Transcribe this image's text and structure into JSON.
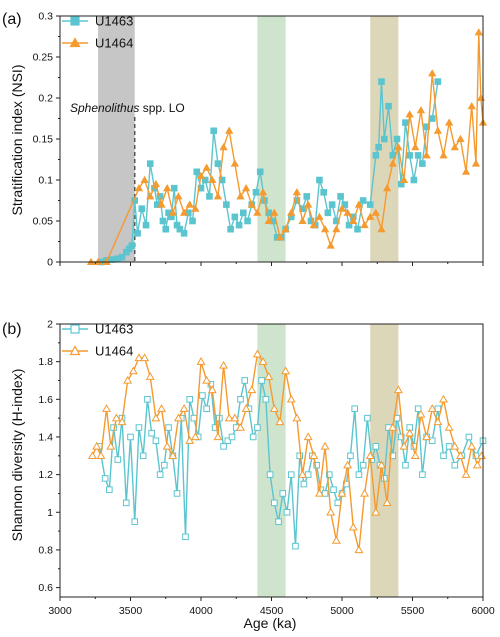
{
  "chart_data": [
    {
      "type": "line",
      "panel_label": "(a)",
      "ylabel": "Stratification index (NSI)",
      "xlabel": "",
      "xlim": [
        3000,
        6000
      ],
      "ylim": [
        0,
        0.3
      ],
      "yticks": [
        0,
        0.05,
        0.1,
        0.15,
        0.2,
        0.25,
        0.3
      ],
      "legend_position": "top-left",
      "annotation": {
        "italic": "Sphenolithus",
        "rest": " spp. LO"
      },
      "bands": [
        {
          "x0": 3270,
          "x1": 3530,
          "color": "#c6c6c6"
        },
        {
          "x0": 4400,
          "x1": 4600,
          "color": "#cfe4cc"
        },
        {
          "x0": 5200,
          "x1": 5400,
          "color": "#ddd7ba"
        }
      ],
      "dashed_line_x": 3530,
      "series": [
        {
          "name": "U1463",
          "color": "#5bc5cf",
          "marker": "square-filled",
          "x": [
            3290,
            3330,
            3370,
            3410,
            3440,
            3470,
            3490,
            3510,
            3530,
            3550,
            3580,
            3610,
            3640,
            3670,
            3690,
            3710,
            3730,
            3750,
            3770,
            3790,
            3810,
            3830,
            3850,
            3880,
            3910,
            3940,
            3970,
            4000,
            4030,
            4060,
            4090,
            4120,
            4150,
            4180,
            4210,
            4240,
            4270,
            4300,
            4330,
            4360,
            4390,
            4420,
            4450,
            4480,
            4510,
            4540,
            4570,
            4600,
            4640,
            4680,
            4720,
            4750,
            4780,
            4810,
            4840,
            4870,
            4900,
            4930,
            4960,
            4990,
            5020,
            5050,
            5080,
            5110,
            5150,
            5200,
            5240,
            5260,
            5280,
            5300,
            5330,
            5360,
            5390,
            5420,
            5450,
            5480,
            5510,
            5540,
            5570,
            5600,
            5640,
            5680
          ],
          "y": [
            0.0,
            0.002,
            0.003,
            0.004,
            0.006,
            0.012,
            0.016,
            0.02,
            0.075,
            0.035,
            0.065,
            0.045,
            0.12,
            0.09,
            0.07,
            0.08,
            0.05,
            0.04,
            0.06,
            0.055,
            0.09,
            0.045,
            0.04,
            0.035,
            0.06,
            0.05,
            0.11,
            0.09,
            0.1,
            0.08,
            0.16,
            0.12,
            0.1,
            0.07,
            0.04,
            0.055,
            0.045,
            0.06,
            0.05,
            0.07,
            0.085,
            0.11,
            0.075,
            0.06,
            0.05,
            0.03,
            0.03,
            0.04,
            0.055,
            0.075,
            0.065,
            0.08,
            0.05,
            0.045,
            0.1,
            0.085,
            0.06,
            0.07,
            0.05,
            0.08,
            0.07,
            0.045,
            0.055,
            0.04,
            0.075,
            0.07,
            0.13,
            0.14,
            0.22,
            0.15,
            0.19,
            0.13,
            0.15,
            0.095,
            0.17,
            0.13,
            0.1,
            0.13,
            0.12,
            0.165,
            0.175,
            0.22
          ]
        },
        {
          "name": "U1464",
          "color": "#f59a2e",
          "marker": "triangle-filled",
          "x": [
            3220,
            3270,
            3330,
            3560,
            3600,
            3640,
            3680,
            3720,
            3760,
            3800,
            3840,
            3880,
            3920,
            3960,
            4000,
            4040,
            4080,
            4120,
            4160,
            4200,
            4240,
            4280,
            4320,
            4360,
            4400,
            4440,
            4480,
            4520,
            4560,
            4600,
            4640,
            4680,
            4720,
            4760,
            4800,
            4840,
            4880,
            4920,
            4960,
            5000,
            5040,
            5080,
            5120,
            5160,
            5200,
            5240,
            5280,
            5320,
            5360,
            5400,
            5440,
            5480,
            5520,
            5560,
            5600,
            5640,
            5680,
            5720,
            5760,
            5800,
            5840,
            5880,
            5920,
            5950,
            5970,
            5985,
            6000
          ],
          "y": [
            0.0,
            0.0,
            0.0,
            0.09,
            0.1,
            0.08,
            0.095,
            0.07,
            0.09,
            0.06,
            0.08,
            0.06,
            0.07,
            0.065,
            0.105,
            0.115,
            0.1,
            0.08,
            0.14,
            0.16,
            0.12,
            0.08,
            0.09,
            0.07,
            0.06,
            0.085,
            0.05,
            0.06,
            0.03,
            0.04,
            0.06,
            0.085,
            0.05,
            0.07,
            0.045,
            0.055,
            0.04,
            0.02,
            0.04,
            0.065,
            0.06,
            0.05,
            0.07,
            0.045,
            0.055,
            0.06,
            0.04,
            0.09,
            0.12,
            0.14,
            0.1,
            0.18,
            0.14,
            0.185,
            0.13,
            0.23,
            0.16,
            0.13,
            0.17,
            0.14,
            0.15,
            0.11,
            0.19,
            0.12,
            0.28,
            0.2,
            0.17
          ]
        }
      ]
    },
    {
      "type": "line",
      "panel_label": "(b)",
      "ylabel": "Shannon diversity (H-index)",
      "xlabel": "Age (ka)",
      "xlim": [
        3000,
        6000
      ],
      "ylim": [
        0.55,
        2.0
      ],
      "yticks": [
        0.6,
        0.8,
        1,
        1.2,
        1.4,
        1.6,
        1.8,
        2
      ],
      "ytick_labels": [
        "0.6",
        "0.8",
        "1",
        "1.2",
        "1.4",
        "1.6",
        "1.8",
        "2"
      ],
      "xticks": [
        3000,
        3500,
        4000,
        4500,
        5000,
        5500,
        6000
      ],
      "xtick_labels": [
        "3000",
        "3500",
        "4000",
        "4500",
        "5000",
        "5500",
        "6000"
      ],
      "legend_position": "top-left",
      "bands": [
        {
          "x0": 4400,
          "x1": 4600,
          "color": "#cfe4cc"
        },
        {
          "x0": 5200,
          "x1": 5400,
          "color": "#ddd7ba"
        }
      ],
      "series": [
        {
          "name": "U1463",
          "color": "#5bc5cf",
          "marker": "square-open",
          "x": [
            3280,
            3320,
            3350,
            3380,
            3410,
            3440,
            3470,
            3500,
            3530,
            3560,
            3590,
            3620,
            3650,
            3680,
            3710,
            3740,
            3770,
            3800,
            3830,
            3860,
            3890,
            3920,
            3950,
            3980,
            4010,
            4040,
            4070,
            4100,
            4130,
            4160,
            4190,
            4220,
            4250,
            4280,
            4310,
            4340,
            4370,
            4400,
            4430,
            4460,
            4490,
            4520,
            4550,
            4580,
            4610,
            4640,
            4670,
            4700,
            4730,
            4760,
            4790,
            4820,
            4850,
            4880,
            4910,
            4940,
            4970,
            5000,
            5030,
            5060,
            5090,
            5120,
            5150,
            5180,
            5210,
            5240,
            5270,
            5300,
            5330,
            5360,
            5390,
            5420,
            5450,
            5480,
            5510,
            5540,
            5570,
            5600,
            5640,
            5680,
            5720,
            5760,
            5800,
            5850,
            5900,
            5950,
            6000
          ],
          "y": [
            1.35,
            1.18,
            1.12,
            1.45,
            1.28,
            1.5,
            1.05,
            1.4,
            0.95,
            1.45,
            1.3,
            1.6,
            1.42,
            1.38,
            1.2,
            1.25,
            1.45,
            1.3,
            1.1,
            1.5,
            0.87,
            1.6,
            1.5,
            1.4,
            1.62,
            1.55,
            1.68,
            1.45,
            1.5,
            1.35,
            1.38,
            1.4,
            1.45,
            1.6,
            1.7,
            1.55,
            1.4,
            1.45,
            1.7,
            1.6,
            1.2,
            1.05,
            0.95,
            1.1,
            1.0,
            1.2,
            0.82,
            1.3,
            1.15,
            1.2,
            1.3,
            1.25,
            1.12,
            1.1,
            1.2,
            1.12,
            1.05,
            1.1,
            1.15,
            1.3,
            1.55,
            1.2,
            1.25,
            1.5,
            1.28,
            1.35,
            1.25,
            1.18,
            1.45,
            1.3,
            1.5,
            1.4,
            1.25,
            1.45,
            1.35,
            1.55,
            1.2,
            1.4,
            1.38,
            1.55,
            1.3,
            1.35,
            1.25,
            1.3,
            1.4,
            1.3,
            1.38
          ]
        },
        {
          "name": "U1464",
          "color": "#f59a2e",
          "marker": "triangle-open",
          "x": [
            3230,
            3260,
            3290,
            3330,
            3360,
            3400,
            3440,
            3480,
            3520,
            3560,
            3600,
            3640,
            3680,
            3720,
            3760,
            3800,
            3840,
            3880,
            3920,
            3960,
            4000,
            4040,
            4080,
            4120,
            4160,
            4200,
            4240,
            4280,
            4320,
            4360,
            4400,
            4440,
            4480,
            4520,
            4560,
            4600,
            4640,
            4680,
            4720,
            4760,
            4800,
            4840,
            4880,
            4920,
            4960,
            5000,
            5040,
            5080,
            5120,
            5160,
            5200,
            5240,
            5280,
            5320,
            5360,
            5400,
            5440,
            5480,
            5520,
            5560,
            5600,
            5640,
            5680,
            5720,
            5760,
            5800,
            5840,
            5880,
            5920,
            5960,
            5990
          ],
          "y": [
            1.3,
            1.35,
            1.3,
            1.55,
            1.35,
            1.5,
            1.48,
            1.7,
            1.75,
            1.82,
            1.82,
            1.72,
            1.5,
            1.55,
            1.35,
            1.3,
            1.5,
            1.55,
            1.38,
            1.4,
            1.8,
            1.7,
            1.65,
            1.4,
            1.78,
            1.5,
            1.5,
            1.45,
            1.55,
            1.65,
            1.84,
            1.8,
            1.72,
            1.55,
            1.48,
            1.75,
            1.6,
            1.5,
            1.2,
            1.4,
            1.3,
            1.1,
            1.35,
            1.0,
            0.85,
            1.1,
            1.25,
            0.92,
            0.8,
            1.1,
            1.3,
            1.0,
            1.25,
            1.05,
            1.45,
            1.65,
            1.35,
            1.42,
            1.3,
            1.52,
            1.4,
            1.55,
            1.48,
            1.6,
            1.45,
            1.35,
            1.3,
            1.2,
            1.35,
            1.25,
            1.3
          ]
        }
      ]
    }
  ]
}
